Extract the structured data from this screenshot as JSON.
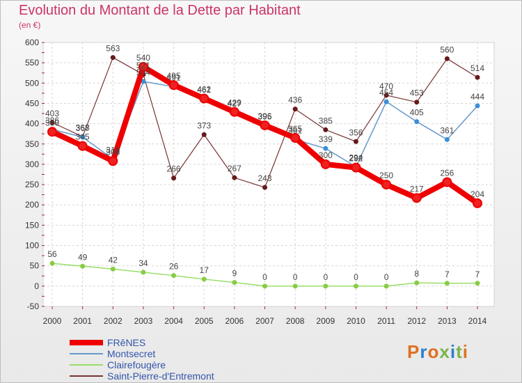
{
  "title": "Evolution du Montant de la Dette par Habitant",
  "subtitle": "(en €)",
  "brand": "Proxiti",
  "brand_colors": [
    "#e07020",
    "#2a7fd0",
    "#e07020",
    "#7ab648",
    "#2a7fd0",
    "#7ab648",
    "#e07020"
  ],
  "chart_data": {
    "type": "line",
    "title": "Evolution du Montant de la Dette par Habitant",
    "subtitle": "(en €)",
    "x": [
      "2000",
      "2001",
      "2002",
      "2003",
      "2004",
      "2005",
      "2006",
      "2007",
      "2008",
      "2009",
      "2010",
      "2011",
      "2012",
      "2013",
      "2014"
    ],
    "ylim": [
      -50,
      600
    ],
    "yticks": [
      "600",
      "550",
      "500",
      "450",
      "400",
      "350",
      "300",
      "250",
      "200",
      "150",
      "100",
      "50",
      "0",
      "-50"
    ],
    "grid": true,
    "legend_position": "bottom-left",
    "series": [
      {
        "name": "FRêNES",
        "color": "#ee0000",
        "marker": "#ee2222",
        "values": [
          380,
          345,
          308,
          540,
          495,
          462,
          429,
          396,
          365,
          300,
          292,
          250,
          217,
          256,
          204
        ],
        "labels": [
          "380",
          "345",
          "308",
          "540",
          "495",
          "462",
          "429",
          "396",
          "365",
          "300",
          "292",
          "250",
          "217",
          "256",
          "204"
        ]
      },
      {
        "name": "Montsecret",
        "color": "#6699cc",
        "marker": "#3a8fd8",
        "values": [
          386,
          367,
          313,
          504,
          491,
          461,
          427,
          395,
          361,
          339,
          294,
          454,
          405,
          361,
          444
        ],
        "labels": [
          "386",
          "367",
          "313",
          "504",
          "491",
          "461",
          "427",
          "395",
          "361",
          "339",
          "294",
          "454",
          "405",
          "361",
          "444"
        ]
      },
      {
        "name": "Clairefougère",
        "color": "#99dd66",
        "marker": "#88cc44",
        "values": [
          56,
          49,
          42,
          34,
          26,
          17,
          9,
          0,
          0,
          0,
          0,
          0,
          8,
          7,
          7
        ],
        "labels": [
          "56",
          "49",
          "42",
          "34",
          "26",
          "17",
          "9",
          "0",
          "0",
          "0",
          "0",
          "0",
          "8",
          "7",
          "7"
        ]
      },
      {
        "name": "Saint-Pierre-d'Entremont",
        "color": "#773333",
        "marker": "#661a1a",
        "values": [
          403,
          368,
          563,
          521,
          266,
          373,
          267,
          243,
          436,
          385,
          356,
          470,
          453,
          560,
          514
        ],
        "labels": [
          "403",
          "368",
          "563",
          "521",
          "266",
          "373",
          "267",
          "243",
          "436",
          "385",
          "356",
          "470",
          "453",
          "560",
          "514"
        ]
      }
    ]
  }
}
